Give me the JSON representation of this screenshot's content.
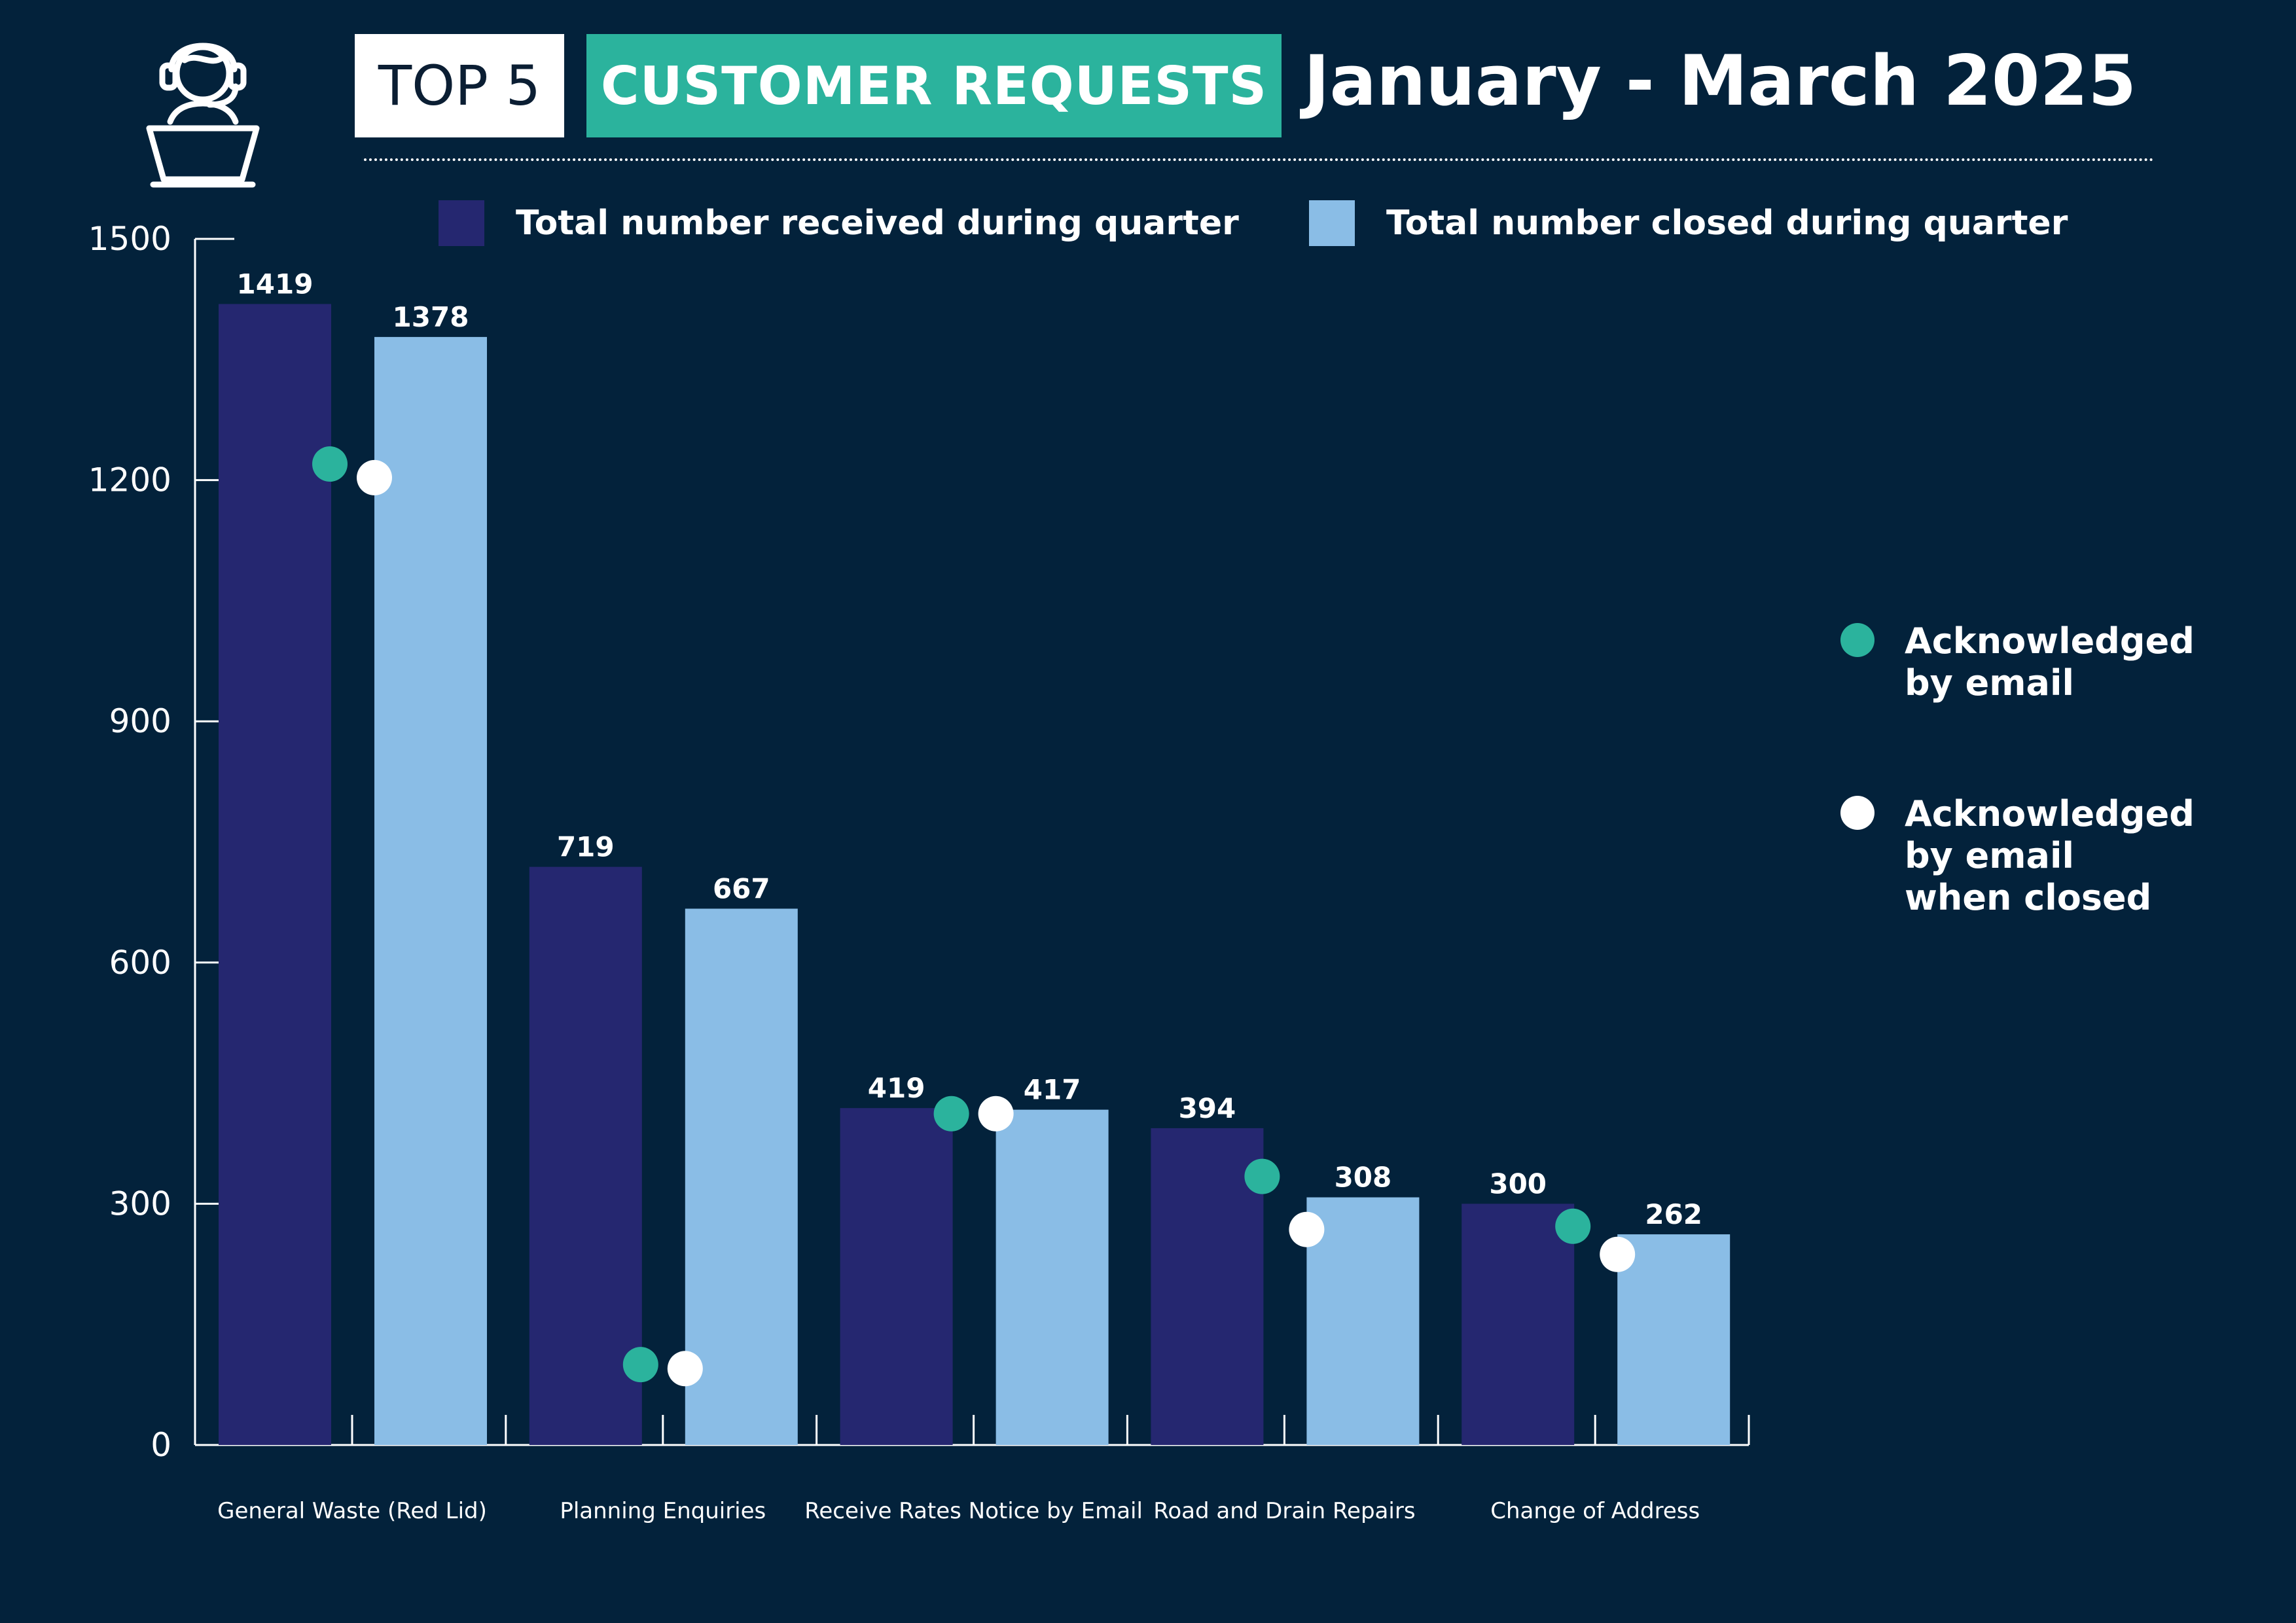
{
  "header": {
    "badge": "TOP 5",
    "category": "CUSTOMER REQUESTS",
    "period": "January - March 2025"
  },
  "icons": {
    "header": "customer-service-agent-icon"
  },
  "colors": {
    "background": "#03223b",
    "received": "#252770",
    "closed": "#8abde6",
    "ack_email": "#2bb39d",
    "ack_email_closed": "#ffffff",
    "category_badge": "#2bb39d"
  },
  "legend": {
    "received": "Total number received during quarter",
    "closed": "Total number closed during quarter",
    "ack_email": "Acknowledged by email",
    "ack_email_closed": "Acknowledged by email when closed"
  },
  "chart_data": {
    "type": "bar",
    "categories": [
      "General Waste (Red Lid)",
      "Planning Enquiries",
      "Receive Rates Notice by Email",
      "Road and Drain Repairs",
      "Change of Address"
    ],
    "series": [
      {
        "name": "Total number received during quarter",
        "values": [
          1419,
          719,
          419,
          394,
          300
        ]
      },
      {
        "name": "Total number closed during quarter",
        "values": [
          1378,
          667,
          417,
          308,
          262
        ]
      }
    ],
    "overlay_series": [
      {
        "name": "Acknowledged by email",
        "type": "scatter",
        "values": [
          1220,
          100,
          412,
          334,
          272
        ]
      },
      {
        "name": "Acknowledged by email when closed",
        "type": "scatter",
        "values": [
          1203,
          95,
          412,
          268,
          237
        ]
      }
    ],
    "ylim": [
      0,
      1500
    ],
    "yticks": [
      0,
      300,
      600,
      900,
      1200,
      1500
    ],
    "data_labels": true,
    "legend_position": "top"
  }
}
